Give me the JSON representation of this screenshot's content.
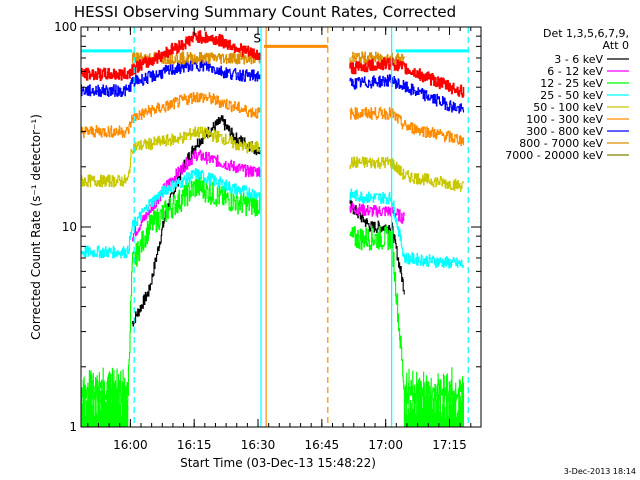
{
  "chart_data": {
    "type": "line",
    "title": "HESSI Observing Summary Count Rates, Corrected",
    "xlabel": "Start Time (03-Dec-13 15:48:22)",
    "ylabel": "Corrected Count Rate (s⁻¹ detector⁻¹)",
    "x_unit": "minutes since 15:48:22 (UT)",
    "xlim": [
      0,
      94
    ],
    "x_ticks": [
      {
        "label": "16:00",
        "value": 11.6
      },
      {
        "label": "16:15",
        "value": 26.6
      },
      {
        "label": "16:30",
        "value": 41.6
      },
      {
        "label": "16:45",
        "value": 56.6
      },
      {
        "label": "17:00",
        "value": 71.6
      },
      {
        "label": "17:15",
        "value": 86.6
      }
    ],
    "y_scale": "log",
    "ylim": [
      1,
      100
    ],
    "y_ticks": [
      {
        "label": "1",
        "value": 1
      },
      {
        "label": "10",
        "value": 10
      },
      {
        "label": "100",
        "value": 100
      }
    ],
    "legend_header_1": "Det 1,3,5,6,7,9,",
    "legend_header_2": "Att 0",
    "legend_position": "right",
    "series": [
      {
        "name": "3 - 6 keV",
        "color": "#000000",
        "points": [
          [
            12,
            3.3
          ],
          [
            16,
            4.8
          ],
          [
            20,
            12
          ],
          [
            24,
            20
          ],
          [
            27,
            26
          ],
          [
            30,
            30
          ],
          [
            33,
            34
          ],
          [
            36,
            28
          ],
          [
            39,
            26
          ],
          [
            42,
            24
          ],
          [
            47,
            null
          ],
          [
            63,
            13
          ],
          [
            68,
            10
          ],
          [
            73,
            10
          ],
          [
            76,
            4.8
          ],
          [
            79,
            null
          ]
        ]
      },
      {
        "name": "6 - 12 keV",
        "color": "#ff00ff",
        "points": [
          [
            12,
            9
          ],
          [
            16,
            12
          ],
          [
            20,
            16
          ],
          [
            24,
            20
          ],
          [
            27,
            23
          ],
          [
            30,
            22
          ],
          [
            33,
            21
          ],
          [
            36,
            20
          ],
          [
            39,
            19
          ],
          [
            42,
            19
          ],
          [
            47,
            null
          ],
          [
            63,
            12.5
          ],
          [
            68,
            12
          ],
          [
            73,
            12
          ],
          [
            76,
            11
          ],
          [
            79,
            null
          ]
        ]
      },
      {
        "name": "12 - 25 keV",
        "color": "#00ff00",
        "points": [
          [
            0,
            1.5
          ],
          [
            11,
            1.5
          ],
          [
            12,
            6.5
          ],
          [
            16,
            10
          ],
          [
            20,
            12
          ],
          [
            24,
            14
          ],
          [
            27,
            16
          ],
          [
            30,
            15
          ],
          [
            33,
            14
          ],
          [
            36,
            13.5
          ],
          [
            39,
            13
          ],
          [
            42,
            13
          ],
          [
            47,
            null
          ],
          [
            63,
            8.8
          ],
          [
            68,
            8.8
          ],
          [
            73,
            8.8
          ],
          [
            76,
            1.5
          ],
          [
            90,
            1.5
          ]
        ]
      },
      {
        "name": "25 - 50 keV",
        "color": "#00ffff",
        "points": [
          [
            0,
            7.5
          ],
          [
            11,
            7.5
          ],
          [
            12,
            10
          ],
          [
            16,
            13
          ],
          [
            20,
            15.5
          ],
          [
            24,
            17
          ],
          [
            27,
            18.5
          ],
          [
            30,
            17.5
          ],
          [
            33,
            16.5
          ],
          [
            36,
            15.5
          ],
          [
            39,
            15
          ],
          [
            42,
            14.5
          ],
          [
            47,
            null
          ],
          [
            63,
            14.5
          ],
          [
            68,
            14
          ],
          [
            73,
            14
          ],
          [
            76,
            7
          ],
          [
            90,
            6.5
          ]
        ]
      },
      {
        "name": "50 - 100 keV",
        "color": "#c8c800",
        "points": [
          [
            0,
            17
          ],
          [
            11,
            17
          ],
          [
            12,
            25
          ],
          [
            16,
            26
          ],
          [
            20,
            27
          ],
          [
            24,
            28
          ],
          [
            27,
            30
          ],
          [
            30,
            29
          ],
          [
            33,
            28
          ],
          [
            36,
            26
          ],
          [
            39,
            25
          ],
          [
            42,
            25
          ],
          [
            47,
            null
          ],
          [
            63,
            21
          ],
          [
            68,
            21
          ],
          [
            73,
            21
          ],
          [
            76,
            18
          ],
          [
            90,
            16
          ]
        ]
      },
      {
        "name": "100 - 300 keV",
        "color": "#ff8c00",
        "points": [
          [
            0,
            30
          ],
          [
            11,
            30
          ],
          [
            12,
            35
          ],
          [
            16,
            38
          ],
          [
            20,
            40
          ],
          [
            24,
            43
          ],
          [
            27,
            45
          ],
          [
            30,
            44
          ],
          [
            33,
            42
          ],
          [
            36,
            40
          ],
          [
            39,
            38
          ],
          [
            42,
            37
          ],
          [
            47,
            null
          ],
          [
            63,
            37
          ],
          [
            68,
            37
          ],
          [
            73,
            37
          ],
          [
            76,
            32
          ],
          [
            90,
            27
          ]
        ]
      },
      {
        "name": "300 - 800 keV",
        "color": "#0000ff",
        "points": [
          [
            0,
            48
          ],
          [
            11,
            48
          ],
          [
            12,
            53
          ],
          [
            16,
            56
          ],
          [
            20,
            60
          ],
          [
            24,
            63
          ],
          [
            27,
            65
          ],
          [
            30,
            63
          ],
          [
            33,
            60
          ],
          [
            36,
            58
          ],
          [
            39,
            57
          ],
          [
            42,
            57
          ],
          [
            47,
            null
          ],
          [
            63,
            52
          ],
          [
            68,
            53
          ],
          [
            73,
            54
          ],
          [
            76,
            50
          ],
          [
            90,
            38
          ]
        ]
      },
      {
        "name": "800 - 7000 keV",
        "color": "#dd9000",
        "points": [
          [
            12,
            70
          ],
          [
            24,
            70
          ],
          [
            42,
            70
          ],
          [
            47,
            null
          ],
          [
            63,
            70
          ],
          [
            76,
            70
          ],
          [
            78,
            null
          ]
        ]
      },
      {
        "name": "7000 - 20000 keV",
        "color": "#808000",
        "points": []
      },
      {
        "name": "",
        "color": "#ff0000",
        "points": [
          [
            0,
            58
          ],
          [
            11,
            58
          ],
          [
            12,
            62
          ],
          [
            16,
            67
          ],
          [
            20,
            75
          ],
          [
            24,
            82
          ],
          [
            27,
            90
          ],
          [
            30,
            88
          ],
          [
            33,
            85
          ],
          [
            36,
            80
          ],
          [
            39,
            75
          ],
          [
            42,
            72
          ],
          [
            47,
            null
          ],
          [
            63,
            62
          ],
          [
            68,
            64
          ],
          [
            73,
            66
          ],
          [
            76,
            62
          ],
          [
            90,
            47
          ]
        ]
      }
    ],
    "flags": [
      {
        "label": "S",
        "color": "#ff8c00",
        "x_start": 43,
        "x_end": 58,
        "y": 80
      }
    ],
    "cyan_bars": [
      {
        "x_start": 0,
        "x_end": 12,
        "y": 76
      },
      {
        "x_start": 74,
        "x_end": 91,
        "y": 76
      }
    ],
    "vertical_lines": [
      {
        "x": 12.5,
        "color": "#00ffff",
        "style": "dashed"
      },
      {
        "x": 42.3,
        "color": "#00ffff",
        "style": "solid"
      },
      {
        "x": 43.5,
        "color": "#ff8c00",
        "style": "solid"
      },
      {
        "x": 58.0,
        "color": "#ff8c00",
        "style": "dashed"
      },
      {
        "x": 73.0,
        "color": "#00ffff",
        "style": "solid"
      },
      {
        "x": 91.0,
        "color": "#00ffff",
        "style": "dashed"
      }
    ]
  },
  "timestamp": "3-Dec-2013 18:14"
}
